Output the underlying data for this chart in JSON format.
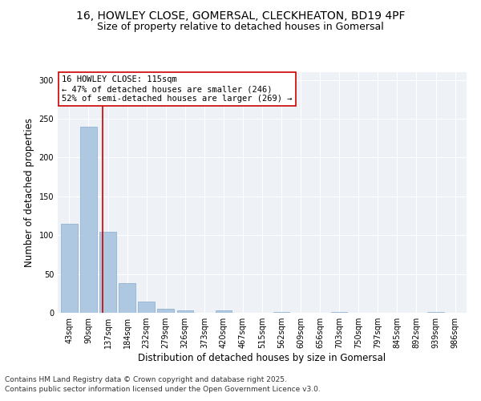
{
  "title_line1": "16, HOWLEY CLOSE, GOMERSAL, CLECKHEATON, BD19 4PF",
  "title_line2": "Size of property relative to detached houses in Gomersal",
  "xlabel": "Distribution of detached houses by size in Gomersal",
  "ylabel": "Number of detached properties",
  "categories": [
    "43sqm",
    "90sqm",
    "137sqm",
    "184sqm",
    "232sqm",
    "279sqm",
    "326sqm",
    "373sqm",
    "420sqm",
    "467sqm",
    "515sqm",
    "562sqm",
    "609sqm",
    "656sqm",
    "703sqm",
    "750sqm",
    "797sqm",
    "845sqm",
    "892sqm",
    "939sqm",
    "986sqm"
  ],
  "values": [
    115,
    240,
    104,
    38,
    14,
    5,
    3,
    0,
    3,
    0,
    0,
    1,
    0,
    0,
    1,
    0,
    0,
    0,
    0,
    1,
    0
  ],
  "bar_color": "#adc8e0",
  "bar_edgecolor": "#88aacc",
  "vline_x": 1.72,
  "vline_color": "#cc0000",
  "ylim": [
    0,
    310
  ],
  "yticks": [
    0,
    50,
    100,
    150,
    200,
    250,
    300
  ],
  "annotation_text": "16 HOWLEY CLOSE: 115sqm\n← 47% of detached houses are smaller (246)\n52% of semi-detached houses are larger (269) →",
  "annotation_box_color": "#cc0000",
  "bg_color": "#eef2f7",
  "footer_line1": "Contains HM Land Registry data © Crown copyright and database right 2025.",
  "footer_line2": "Contains public sector information licensed under the Open Government Licence v3.0.",
  "title_fontsize": 10,
  "subtitle_fontsize": 9,
  "axis_label_fontsize": 8.5,
  "tick_fontsize": 7,
  "annotation_fontsize": 7.5,
  "footer_fontsize": 6.5
}
